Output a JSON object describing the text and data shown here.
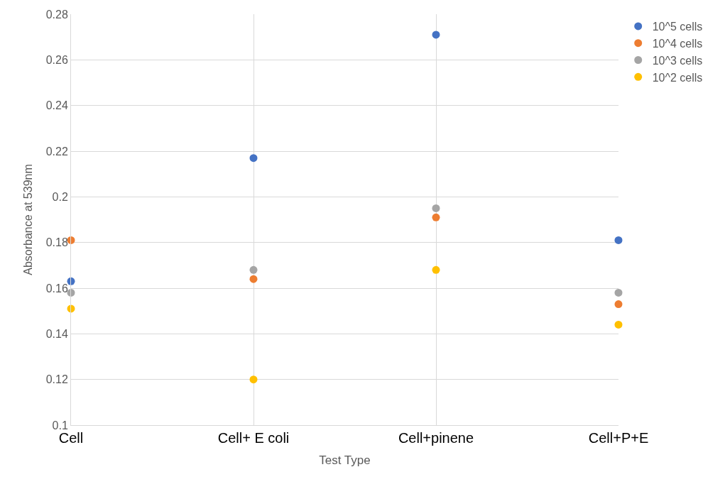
{
  "chart_data": {
    "type": "scatter",
    "xlabel": "Test Type",
    "ylabel": "Absorbance at 539nm",
    "categories": [
      "Cell",
      "Cell+ E coli",
      "Cell+pinene",
      "Cell+P+E"
    ],
    "series": [
      {
        "name": "10^5 cells",
        "color": "#4472c4",
        "values": [
          0.163,
          0.217,
          0.271,
          0.181
        ]
      },
      {
        "name": "10^4 cells",
        "color": "#ed7d31",
        "values": [
          0.181,
          0.164,
          0.191,
          0.153
        ]
      },
      {
        "name": "10^3 cells",
        "color": "#a5a5a5",
        "values": [
          0.158,
          0.168,
          0.195,
          0.158
        ]
      },
      {
        "name": "10^2 cells",
        "color": "#ffc000",
        "values": [
          0.151,
          0.12,
          0.168,
          0.144
        ]
      }
    ],
    "ylim": [
      0.1,
      0.28
    ],
    "yticks": [
      0.1,
      0.12,
      0.14,
      0.16,
      0.18,
      0.2,
      0.22,
      0.24,
      0.26,
      0.28
    ],
    "grid": true,
    "legend": "top right",
    "marker": "circle"
  }
}
